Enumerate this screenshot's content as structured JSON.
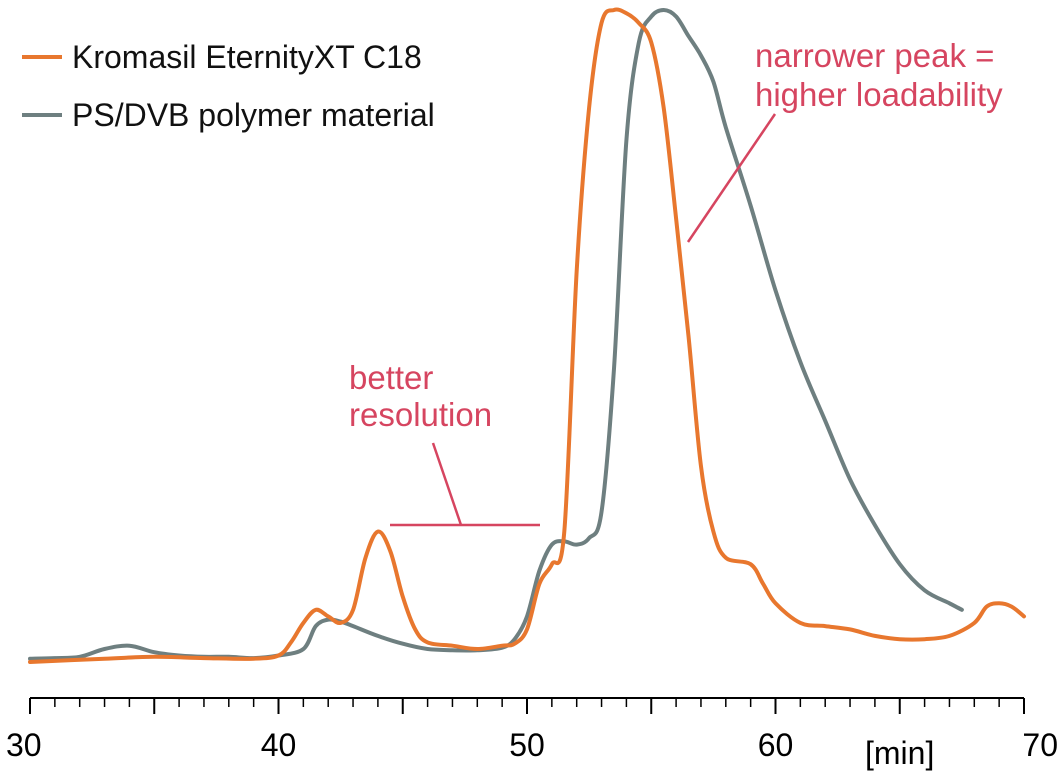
{
  "chart_data": {
    "type": "line",
    "title": "",
    "xlabel": "[min]",
    "ylabel": "",
    "xlim": [
      30,
      70
    ],
    "ylim": [
      0,
      100
    ],
    "x_ticks": [
      30,
      40,
      50,
      60,
      70
    ],
    "x_tick_labels": [
      "30",
      "40",
      "50",
      "60",
      "70"
    ],
    "x_minor_step": 1,
    "grid": false,
    "legend_position": "top-left",
    "series": [
      {
        "name": "Kromasil EternityXT C18",
        "color": "#E8772E",
        "points": [
          [
            30,
            0.0
          ],
          [
            33,
            0.5
          ],
          [
            35,
            0.8
          ],
          [
            37,
            0.6
          ],
          [
            39,
            0.5
          ],
          [
            40,
            1.0
          ],
          [
            40.5,
            3.0
          ],
          [
            41,
            6.0
          ],
          [
            41.5,
            8.0
          ],
          [
            42,
            7.0
          ],
          [
            42.5,
            6.0
          ],
          [
            43,
            8.0
          ],
          [
            43.5,
            16.0
          ],
          [
            44,
            20.0
          ],
          [
            44.5,
            17.0
          ],
          [
            45,
            10.0
          ],
          [
            45.5,
            5.0
          ],
          [
            46,
            3.0
          ],
          [
            47,
            2.5
          ],
          [
            48,
            2.0
          ],
          [
            49,
            2.5
          ],
          [
            49.5,
            2.8
          ],
          [
            50,
            5.0
          ],
          [
            50.5,
            12.0
          ],
          [
            51,
            15.0
          ],
          [
            51.5,
            20.0
          ],
          [
            52,
            60.0
          ],
          [
            52.5,
            85.0
          ],
          [
            53,
            98.0
          ],
          [
            53.5,
            100.0
          ],
          [
            54,
            99.5
          ],
          [
            54.5,
            98.0
          ],
          [
            55,
            95.0
          ],
          [
            55.5,
            85.0
          ],
          [
            56,
            68.0
          ],
          [
            56.5,
            50.0
          ],
          [
            57,
            30.0
          ],
          [
            57.5,
            20.0
          ],
          [
            58,
            16.0
          ],
          [
            59,
            15.0
          ],
          [
            59.5,
            12.0
          ],
          [
            60,
            9.0
          ],
          [
            61,
            6.0
          ],
          [
            62,
            5.5
          ],
          [
            63,
            5.0
          ],
          [
            64,
            4.0
          ],
          [
            65,
            3.5
          ],
          [
            66,
            3.5
          ],
          [
            67,
            4.0
          ],
          [
            68,
            6.0
          ],
          [
            68.5,
            8.5
          ],
          [
            69,
            9.0
          ],
          [
            69.5,
            8.5
          ],
          [
            70,
            7.0
          ]
        ]
      },
      {
        "name": "PS/DVB polymer material",
        "color": "#6E7F80",
        "points": [
          [
            30,
            0.5
          ],
          [
            31,
            0.6
          ],
          [
            32,
            0.8
          ],
          [
            33,
            2.0
          ],
          [
            34,
            2.5
          ],
          [
            35,
            1.5
          ],
          [
            36,
            1.0
          ],
          [
            37,
            0.8
          ],
          [
            38,
            0.8
          ],
          [
            39,
            0.6
          ],
          [
            40,
            1.0
          ],
          [
            41,
            2.0
          ],
          [
            41.5,
            5.5
          ],
          [
            42,
            6.5
          ],
          [
            42.5,
            6.2
          ],
          [
            43,
            5.5
          ],
          [
            44,
            4.0
          ],
          [
            45,
            2.8
          ],
          [
            46,
            2.0
          ],
          [
            47,
            1.8
          ],
          [
            48,
            1.8
          ],
          [
            49,
            2.2
          ],
          [
            49.5,
            3.5
          ],
          [
            50,
            7.0
          ],
          [
            50.5,
            14.0
          ],
          [
            51,
            18.0
          ],
          [
            51.5,
            18.5
          ],
          [
            52,
            18.0
          ],
          [
            52.5,
            19.0
          ],
          [
            53,
            23.0
          ],
          [
            53.5,
            45.0
          ],
          [
            54,
            80.0
          ],
          [
            54.5,
            95.0
          ],
          [
            55,
            99.0
          ],
          [
            55.5,
            100.0
          ],
          [
            56,
            99.0
          ],
          [
            56.5,
            96.0
          ],
          [
            57,
            93.0
          ],
          [
            57.5,
            89.0
          ],
          [
            58,
            82.0
          ],
          [
            59,
            70.0
          ],
          [
            60,
            57.0
          ],
          [
            61,
            46.0
          ],
          [
            62,
            37.0
          ],
          [
            63,
            28.0
          ],
          [
            64,
            21.0
          ],
          [
            65,
            15.0
          ],
          [
            66,
            11.0
          ],
          [
            67,
            9.0
          ],
          [
            67.5,
            8.0
          ]
        ]
      }
    ],
    "annotations": [
      {
        "lines": [
          "better",
          "resolution"
        ],
        "color": "#D64560"
      },
      {
        "lines": [
          "narrower peak =",
          "higher loadability"
        ],
        "color": "#D64560"
      }
    ]
  }
}
